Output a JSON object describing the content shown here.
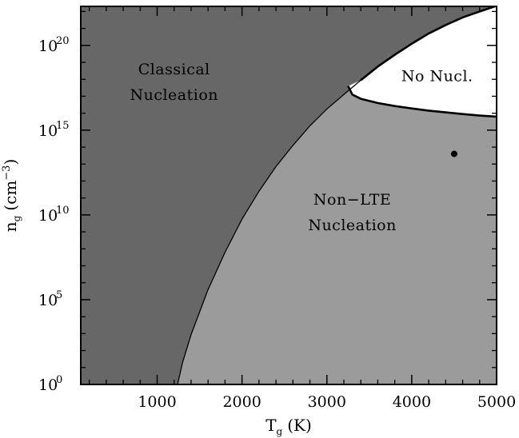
{
  "chart_data": {
    "type": "area",
    "xlabel": {
      "main": "T",
      "sub": "g",
      "unit": "(K)"
    },
    "ylabel": {
      "main": "n",
      "sub": "g",
      "unit_pre": "(cm",
      "unit_sup": "−3",
      "unit_post": ")"
    },
    "xlim": [
      100,
      5000
    ],
    "ylim_log10": [
      0,
      22.3
    ],
    "y_scale": "log",
    "x_ticks": [
      {
        "value": 1000,
        "label": "1000"
      },
      {
        "value": 2000,
        "label": "2000"
      },
      {
        "value": 3000,
        "label": "3000"
      },
      {
        "value": 4000,
        "label": "4000"
      },
      {
        "value": 5000,
        "label": "5000"
      }
    ],
    "y_ticks": [
      {
        "exp": 0,
        "base": "10",
        "sup": "0"
      },
      {
        "exp": 5,
        "base": "10",
        "sup": "5"
      },
      {
        "exp": 10,
        "base": "10",
        "sup": "10"
      },
      {
        "exp": 15,
        "base": "10",
        "sup": "15"
      },
      {
        "exp": 20,
        "base": "10",
        "sup": "20"
      }
    ],
    "colors": {
      "classical": "#676767",
      "non_lte": "#9b9b9b",
      "no_nucl": "#ffffff",
      "line": "#000000"
    },
    "regions": [
      {
        "name": "classical",
        "lines": [
          "Classical",
          "Nucleation"
        ],
        "at_x": 1200,
        "at_log_y": 18.3
      },
      {
        "name": "non-lte",
        "lines": [
          "Non−LTE",
          "Nucleation"
        ],
        "at_x": 3300,
        "at_log_y": 10.6
      },
      {
        "name": "no-nucl",
        "lines": [
          "No Nucl."
        ],
        "at_x": 4300,
        "at_log_y": 17.9
      }
    ],
    "boundary_curve": [
      {
        "x": 1240,
        "log_y": 0.0
      },
      {
        "x": 1300,
        "log_y": 1.3
      },
      {
        "x": 1400,
        "log_y": 2.95
      },
      {
        "x": 1600,
        "log_y": 5.6
      },
      {
        "x": 1800,
        "log_y": 7.8
      },
      {
        "x": 2000,
        "log_y": 9.75
      },
      {
        "x": 2200,
        "log_y": 11.4
      },
      {
        "x": 2400,
        "log_y": 12.85
      },
      {
        "x": 2600,
        "log_y": 14.1
      },
      {
        "x": 2800,
        "log_y": 15.25
      },
      {
        "x": 3000,
        "log_y": 16.25
      },
      {
        "x": 3200,
        "log_y": 17.1
      },
      {
        "x": 3400,
        "log_y": 17.95
      },
      {
        "x": 3600,
        "log_y": 18.75
      },
      {
        "x": 3800,
        "log_y": 19.45
      },
      {
        "x": 4000,
        "log_y": 20.1
      },
      {
        "x": 4200,
        "log_y": 20.7
      },
      {
        "x": 4400,
        "log_y": 21.2
      },
      {
        "x": 4600,
        "log_y": 21.65
      },
      {
        "x": 4800,
        "log_y": 22.0
      },
      {
        "x": 4980,
        "log_y": 22.3
      }
    ],
    "no_nucl_lower_curve": [
      {
        "x": 3250,
        "log_y": 17.6
      },
      {
        "x": 3300,
        "log_y": 17.1
      },
      {
        "x": 3400,
        "log_y": 16.85
      },
      {
        "x": 3600,
        "log_y": 16.6
      },
      {
        "x": 3800,
        "log_y": 16.42
      },
      {
        "x": 4000,
        "log_y": 16.28
      },
      {
        "x": 4200,
        "log_y": 16.15
      },
      {
        "x": 4400,
        "log_y": 16.05
      },
      {
        "x": 4600,
        "log_y": 15.95
      },
      {
        "x": 4800,
        "log_y": 15.86
      },
      {
        "x": 5000,
        "log_y": 15.8
      }
    ],
    "point": {
      "x": 4500,
      "log_y": 13.6
    }
  }
}
